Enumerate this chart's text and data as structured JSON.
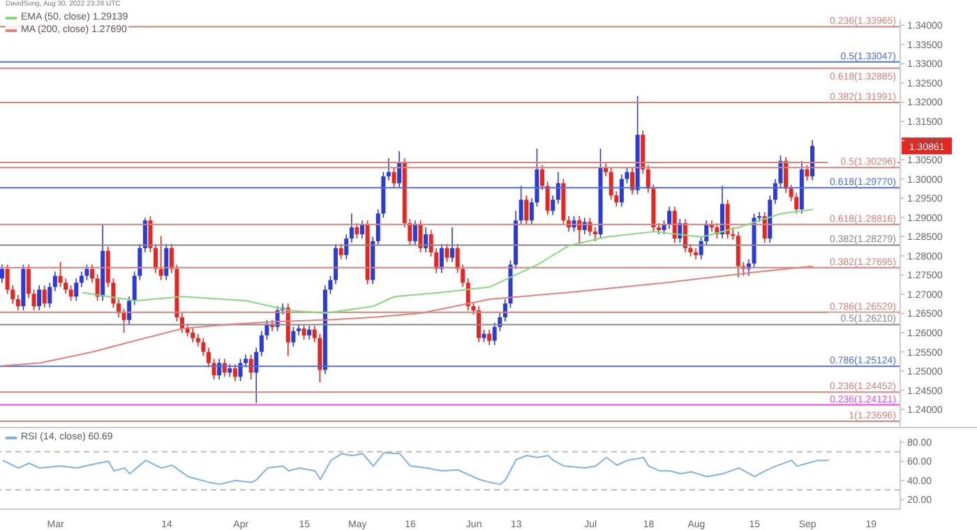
{
  "chart_data": [
    {
      "type": "candlestick",
      "annotations": [
        "DavidSong, Aug 30, 2022 23:28 UTC",
        {
          "text": "1.30861",
          "y": 1.30861
        }
      ],
      "categories": [
        null,
        null,
        null,
        null,
        null,
        null,
        null,
        null,
        null,
        null,
        null,
        null,
        null,
        null,
        null,
        null,
        null,
        null,
        null,
        null,
        null,
        null,
        null,
        null,
        null,
        null,
        null,
        null,
        null,
        null,
        null,
        null,
        null,
        null,
        null,
        null,
        null,
        null,
        null,
        null,
        null,
        null,
        null,
        null,
        null,
        null,
        null,
        null,
        null,
        null,
        null,
        null,
        null,
        null,
        null,
        null,
        null,
        null,
        null,
        null,
        null,
        null,
        null,
        null,
        null,
        null,
        null,
        null,
        null,
        null,
        null,
        null,
        null,
        null,
        null,
        null,
        null,
        null,
        null,
        null,
        null,
        null,
        null,
        null,
        null,
        null,
        null,
        null,
        null,
        null,
        null,
        null,
        null,
        null,
        null,
        null,
        null,
        null,
        null,
        null,
        null,
        null,
        null,
        null,
        null,
        null,
        null,
        null,
        null,
        null,
        null,
        null,
        null,
        null,
        null,
        null,
        null,
        null,
        null,
        null,
        null,
        null,
        null,
        null,
        null,
        null,
        null,
        null,
        null,
        null,
        null,
        null,
        null,
        null,
        null,
        null,
        null,
        null,
        null,
        null,
        null,
        null,
        null,
        null,
        null,
        null,
        null,
        null,
        null,
        null,
        null,
        null,
        null,
        null,
        null,
        null,
        null,
        null,
        null,
        null,
        null,
        null,
        null,
        null,
        null,
        null,
        null,
        null,
        null,
        null
      ],
      "ohlc": [
        [
          1.2741,
          1.2777,
          1.273,
          1.2766
        ],
        [
          1.2766,
          1.2777,
          1.2701,
          1.2712
        ],
        [
          1.2712,
          1.2723,
          1.2676,
          1.2687
        ],
        [
          1.2687,
          1.2698,
          1.2658,
          1.2669
        ],
        [
          1.2669,
          1.2777,
          1.2658,
          1.2766
        ],
        [
          1.2766,
          1.2777,
          1.269,
          1.2701
        ],
        [
          1.2701,
          1.2712,
          1.2658,
          1.2669
        ],
        [
          1.2669,
          1.2723,
          1.2658,
          1.2712
        ],
        [
          1.2712,
          1.2723,
          1.2665,
          1.2676
        ],
        [
          1.2676,
          1.273,
          1.2665,
          1.2719
        ],
        [
          1.2719,
          1.2759,
          1.2708,
          1.2748
        ],
        [
          1.2748,
          1.2784,
          1.2719,
          1.273
        ],
        [
          1.273,
          1.2741,
          1.2701,
          1.2712
        ],
        [
          1.2712,
          1.2723,
          1.2683,
          1.2694
        ],
        [
          1.2694,
          1.2741,
          1.2683,
          1.273
        ],
        [
          1.273,
          1.2759,
          1.2719,
          1.2748
        ],
        [
          1.2748,
          1.2777,
          1.2737,
          1.2766
        ],
        [
          1.2766,
          1.2777,
          1.273,
          1.2741
        ],
        [
          1.2741,
          1.2752,
          1.2683,
          1.2694
        ],
        [
          1.2694,
          1.2881,
          1.2683,
          1.2813
        ],
        [
          1.2813,
          1.2824,
          1.2719,
          1.273
        ],
        [
          1.273,
          1.2741,
          1.2665,
          1.2676
        ],
        [
          1.2676,
          1.2687,
          1.264,
          1.2651
        ],
        [
          1.2651,
          1.2662,
          1.26,
          1.2633
        ],
        [
          1.2633,
          1.2694,
          1.2622,
          1.2683
        ],
        [
          1.2683,
          1.2759,
          1.2672,
          1.2748
        ],
        [
          1.2748,
          1.2831,
          1.2737,
          1.282
        ],
        [
          1.282,
          1.2899,
          1.2809,
          1.2892
        ],
        [
          1.2892,
          1.2903,
          1.2809,
          1.282
        ],
        [
          1.282,
          1.2831,
          1.2755,
          1.2766
        ],
        [
          1.2766,
          1.2852,
          1.2737,
          1.2748
        ],
        [
          1.2748,
          1.2831,
          1.2737,
          1.282
        ],
        [
          1.282,
          1.2831,
          1.2755,
          1.2766
        ],
        [
          1.2766,
          1.2777,
          1.2629,
          1.264
        ],
        [
          1.264,
          1.2651,
          1.26,
          1.2611
        ],
        [
          1.2611,
          1.2622,
          1.259,
          1.26
        ],
        [
          1.26,
          1.2611,
          1.2575,
          1.2586
        ],
        [
          1.2586,
          1.2597,
          1.2564,
          1.2575
        ],
        [
          1.2575,
          1.2586,
          1.2539,
          1.255
        ],
        [
          1.255,
          1.2561,
          1.251,
          1.2521
        ],
        [
          1.2521,
          1.2532,
          1.2478,
          1.2489
        ],
        [
          1.2489,
          1.2532,
          1.2478,
          1.2521
        ],
        [
          1.2521,
          1.2532,
          1.2485,
          1.2496
        ],
        [
          1.2496,
          1.2518,
          1.2485,
          1.2507
        ],
        [
          1.2507,
          1.2518,
          1.2474,
          1.2485
        ],
        [
          1.2485,
          1.2532,
          1.2474,
          1.2521
        ],
        [
          1.2521,
          1.2543,
          1.251,
          1.2532
        ],
        [
          1.2532,
          1.2543,
          1.2478,
          1.2496
        ],
        [
          1.2496,
          1.2561,
          1.2417,
          1.255
        ],
        [
          1.255,
          1.2604,
          1.2539,
          1.2593
        ],
        [
          1.2593,
          1.2633,
          1.2582,
          1.2622
        ],
        [
          1.2622,
          1.2633,
          1.2604,
          1.2615
        ],
        [
          1.2615,
          1.2669,
          1.2604,
          1.2658
        ],
        [
          1.2658,
          1.2676,
          1.2647,
          1.2665
        ],
        [
          1.2665,
          1.2676,
          1.2539,
          1.2575
        ],
        [
          1.2575,
          1.2615,
          1.2564,
          1.2604
        ],
        [
          1.2604,
          1.2622,
          1.2593,
          1.2611
        ],
        [
          1.2611,
          1.2622,
          1.2582,
          1.2593
        ],
        [
          1.2593,
          1.2618,
          1.2582,
          1.2608
        ],
        [
          1.2608,
          1.2618,
          1.2575,
          1.2586
        ],
        [
          1.2586,
          1.2597,
          1.2471,
          1.2503
        ],
        [
          1.2503,
          1.2723,
          1.2492,
          1.2712
        ],
        [
          1.2712,
          1.2748,
          1.2701,
          1.2737
        ],
        [
          1.2737,
          1.2831,
          1.2726,
          1.282
        ],
        [
          1.282,
          1.2831,
          1.2791,
          1.2802
        ],
        [
          1.2802,
          1.2856,
          1.2791,
          1.2845
        ],
        [
          1.2845,
          1.291,
          1.2834,
          1.2874
        ],
        [
          1.2874,
          1.2885,
          1.2845,
          1.2856
        ],
        [
          1.2856,
          1.2892,
          1.2845,
          1.2881
        ],
        [
          1.2881,
          1.2892,
          1.2726,
          1.2737
        ],
        [
          1.2737,
          1.2849,
          1.2726,
          1.2838
        ],
        [
          1.2838,
          1.2921,
          1.2827,
          1.291
        ],
        [
          1.291,
          1.3018,
          1.2899,
          1.3007
        ],
        [
          1.3007,
          1.3054,
          1.2996,
          1.3018
        ],
        [
          1.3018,
          1.3029,
          1.2978,
          1.2989
        ],
        [
          1.2989,
          1.3072,
          1.2978,
          1.3043
        ],
        [
          1.3043,
          1.3054,
          1.2874,
          1.2885
        ],
        [
          1.2885,
          1.2896,
          1.2827,
          1.2838
        ],
        [
          1.2838,
          1.2892,
          1.2827,
          1.2881
        ],
        [
          1.2881,
          1.2892,
          1.2809,
          1.282
        ],
        [
          1.282,
          1.2874,
          1.2809,
          1.2856
        ],
        [
          1.2856,
          1.2867,
          1.2798,
          1.2809
        ],
        [
          1.2809,
          1.282,
          1.2755,
          1.2766
        ],
        [
          1.2766,
          1.2831,
          1.2755,
          1.282
        ],
        [
          1.282,
          1.2831,
          1.2784,
          1.2795
        ],
        [
          1.2795,
          1.2874,
          1.2784,
          1.282
        ],
        [
          1.282,
          1.2831,
          1.2755,
          1.2766
        ],
        [
          1.2766,
          1.2777,
          1.2719,
          1.273
        ],
        [
          1.273,
          1.2741,
          1.2658,
          1.2669
        ],
        [
          1.2669,
          1.268,
          1.2647,
          1.2658
        ],
        [
          1.2658,
          1.2669,
          1.2575,
          1.2586
        ],
        [
          1.2586,
          1.2608,
          1.2575,
          1.2597
        ],
        [
          1.2597,
          1.2608,
          1.2568,
          1.2579
        ],
        [
          1.2579,
          1.2626,
          1.2568,
          1.2615
        ],
        [
          1.2615,
          1.2651,
          1.2604,
          1.264
        ],
        [
          1.264,
          1.2687,
          1.2629,
          1.2676
        ],
        [
          1.2676,
          1.2788,
          1.2665,
          1.2777
        ],
        [
          1.2777,
          1.2917,
          1.2766,
          1.2892
        ],
        [
          1.2892,
          1.2982,
          1.2881,
          1.2946
        ],
        [
          1.2946,
          1.2957,
          1.2881,
          1.2892
        ],
        [
          1.2892,
          1.295,
          1.2881,
          1.2939
        ],
        [
          1.2939,
          1.3079,
          1.2928,
          1.3025
        ],
        [
          1.3025,
          1.3036,
          1.2971,
          1.2982
        ],
        [
          1.2982,
          1.2993,
          1.2906,
          1.2917
        ],
        [
          1.2917,
          1.2957,
          1.2906,
          1.2946
        ],
        [
          1.2946,
          1.3018,
          1.2935,
          1.2989
        ],
        [
          1.2989,
          1.3,
          1.2881,
          1.2892
        ],
        [
          1.2892,
          1.2903,
          1.2863,
          1.2874
        ],
        [
          1.2874,
          1.2903,
          1.2863,
          1.2892
        ],
        [
          1.2892,
          1.2903,
          1.2831,
          1.2867
        ],
        [
          1.2867,
          1.2899,
          1.2856,
          1.2888
        ],
        [
          1.2888,
          1.2899,
          1.2852,
          1.2863
        ],
        [
          1.2863,
          1.2874,
          1.2838,
          1.2856
        ],
        [
          1.2856,
          1.3079,
          1.2845,
          1.3029
        ],
        [
          1.3029,
          1.304,
          1.3007,
          1.3018
        ],
        [
          1.3018,
          1.3029,
          1.2946,
          1.2957
        ],
        [
          1.2957,
          1.2968,
          1.2928,
          1.2939
        ],
        [
          1.2939,
          1.3011,
          1.2928,
          1.3
        ],
        [
          1.3,
          1.3029,
          1.2989,
          1.3018
        ],
        [
          1.3018,
          1.3029,
          1.296,
          1.2971
        ],
        [
          1.2971,
          1.3216,
          1.296,
          1.3115
        ],
        [
          1.3115,
          1.3126,
          1.3014,
          1.3025
        ],
        [
          1.3025,
          1.3036,
          1.2964,
          1.2975
        ],
        [
          1.2975,
          1.2985,
          1.2863,
          1.2874
        ],
        [
          1.2874,
          1.2885,
          1.2856,
          1.2867
        ],
        [
          1.2867,
          1.2892,
          1.2856,
          1.2881
        ],
        [
          1.2881,
          1.2928,
          1.287,
          1.2917
        ],
        [
          1.2917,
          1.2928,
          1.2834,
          1.2845
        ],
        [
          1.2845,
          1.2896,
          1.2834,
          1.2885
        ],
        [
          1.2885,
          1.2896,
          1.2809,
          1.282
        ],
        [
          1.282,
          1.2831,
          1.2798,
          1.2809
        ],
        [
          1.2809,
          1.282,
          1.2791,
          1.2802
        ],
        [
          1.2802,
          1.2849,
          1.2791,
          1.2838
        ],
        [
          1.2838,
          1.2892,
          1.2827,
          1.2881
        ],
        [
          1.2881,
          1.2892,
          1.2863,
          1.2874
        ],
        [
          1.2874,
          1.2885,
          1.2845,
          1.2856
        ],
        [
          1.2856,
          1.2982,
          1.2845,
          1.2935
        ],
        [
          1.2935,
          1.2946,
          1.2845,
          1.2856
        ],
        [
          1.2856,
          1.2874,
          1.2842,
          1.2852
        ],
        [
          1.2852,
          1.2863,
          1.2744,
          1.2773
        ],
        [
          1.2773,
          1.2784,
          1.2748,
          1.2766
        ],
        [
          1.2766,
          1.2791,
          1.2748,
          1.278
        ],
        [
          1.278,
          1.291,
          1.277,
          1.2899
        ],
        [
          1.2899,
          1.2914,
          1.2888,
          1.2903
        ],
        [
          1.2903,
          1.2914,
          1.2834,
          1.2845
        ],
        [
          1.2845,
          1.2957,
          1.2834,
          1.2946
        ],
        [
          1.2946,
          1.3,
          1.2935,
          1.2989
        ],
        [
          1.2989,
          1.3061,
          1.2978,
          1.3047
        ],
        [
          1.3047,
          1.3057,
          1.2964,
          1.2975
        ],
        [
          1.2975,
          1.2985,
          1.2942,
          1.2953
        ],
        [
          1.2953,
          1.2964,
          1.291,
          1.2921
        ],
        [
          1.2921,
          1.3047,
          1.291,
          1.3025
        ],
        [
          1.3025,
          1.3036,
          1.2996,
          1.3007
        ],
        [
          1.3007,
          1.3101,
          1.2996,
          1.30861
        ],
        null,
        null,
        null,
        null,
        null,
        null,
        null,
        null,
        null,
        null,
        null,
        null,
        null,
        null,
        null,
        null
      ],
      "colors": [
        "#2a3bd8",
        "#e8261f",
        "#e8261f",
        "#e8261f",
        "#2a3bd8",
        "#e8261f",
        "#e8261f",
        "#2a3bd8",
        "#e8261f",
        "#2a3bd8",
        "#2a3bd8",
        "#e8261f",
        "#e8261f",
        "#e8261f",
        "#2a3bd8",
        "#2a3bd8",
        "#2a3bd8",
        "#e8261f",
        "#e8261f",
        "#2a3bd8",
        "#e8261f",
        "#e8261f",
        "#e8261f",
        "#e8261f",
        "#2a3bd8",
        "#2a3bd8",
        "#2a3bd8",
        "#2a3bd8",
        "#e8261f",
        "#e8261f",
        "#e8261f",
        "#2a3bd8",
        "#e8261f",
        "#e8261f",
        "#e8261f",
        "#e8261f",
        "#e8261f",
        "#e8261f",
        "#e8261f",
        "#e8261f",
        "#e8261f",
        "#2a3bd8",
        "#e8261f",
        "#2a3bd8",
        "#e8261f",
        "#2a3bd8",
        "#2a3bd8",
        "#e8261f",
        "#2a3bd8",
        "#2a3bd8",
        "#2a3bd8",
        "#e8261f",
        "#2a3bd8",
        "#2a3bd8",
        "#e8261f",
        "#2a3bd8",
        "#2a3bd8",
        "#e8261f",
        "#2a3bd8",
        "#e8261f",
        "#e8261f",
        "#2a3bd8",
        "#2a3bd8",
        "#2a3bd8",
        "#e8261f",
        "#2a3bd8",
        "#2a3bd8",
        "#e8261f",
        "#2a3bd8",
        "#e8261f",
        "#2a3bd8",
        "#2a3bd8",
        "#2a3bd8",
        "#2a3bd8",
        "#e8261f",
        "#2a3bd8",
        "#e8261f",
        "#e8261f",
        "#2a3bd8",
        "#e8261f",
        "#2a3bd8",
        "#e8261f",
        "#e8261f",
        "#2a3bd8",
        "#e8261f",
        "#2a3bd8",
        "#e8261f",
        "#e8261f",
        "#e8261f",
        "#e8261f",
        "#e8261f",
        "#2a3bd8",
        "#e8261f",
        "#2a3bd8",
        "#2a3bd8",
        "#2a3bd8",
        "#2a3bd8",
        "#2a3bd8",
        "#2a3bd8",
        "#e8261f",
        "#2a3bd8",
        "#2a3bd8",
        "#e8261f",
        "#e8261f",
        "#2a3bd8",
        "#2a3bd8",
        "#e8261f",
        "#e8261f",
        "#2a3bd8",
        "#e8261f",
        "#2a3bd8",
        "#e8261f",
        "#e8261f",
        "#2a3bd8",
        "#e8261f",
        "#e8261f",
        "#e8261f",
        "#2a3bd8",
        "#2a3bd8",
        "#e8261f",
        "#2a3bd8",
        "#e8261f",
        "#e8261f",
        "#e8261f",
        "#e8261f",
        "#2a3bd8",
        "#2a3bd8",
        "#e8261f",
        "#2a3bd8",
        "#e8261f",
        "#e8261f",
        "#e8261f",
        "#2a3bd8",
        "#2a3bd8",
        "#e8261f",
        "#e8261f",
        "#2a3bd8",
        "#e8261f",
        "#e8261f",
        "#e8261f",
        "#e8261f",
        "#2a3bd8",
        "#2a3bd8",
        "#2a3bd8",
        "#e8261f",
        "#2a3bd8",
        "#2a3bd8",
        "#2a3bd8",
        "#e8261f",
        "#e8261f",
        "#e8261f",
        "#2a3bd8",
        "#e8261f",
        "#2a3bd8",
        null,
        null,
        null,
        null,
        null,
        null,
        null,
        null,
        null,
        null,
        null,
        null,
        null,
        null,
        null,
        null
      ],
      "series": [
        {
          "type": "line",
          "name": "EMA (50, close) 1.29139",
          "color": "#86d97f",
          "values": [
            null,
            null,
            null,
            null,
            null,
            null,
            null,
            null,
            null,
            null,
            null,
            null,
            null,
            null,
            null,
            1.2705,
            null,
            null,
            null,
            null,
            null,
            null,
            null,
            null,
            null,
            1.2683,
            null,
            null,
            null,
            null,
            null,
            null,
            null,
            null,
            1.2694,
            null,
            null,
            null,
            null,
            null,
            null,
            null,
            null,
            null,
            null,
            null,
            1.2683,
            null,
            null,
            null,
            null,
            null,
            null,
            null,
            1.2658,
            null,
            null,
            null,
            null,
            null,
            null,
            1.2651,
            null,
            null,
            null,
            null,
            null,
            null,
            null,
            null,
            1.2669,
            null,
            null,
            null,
            1.2694,
            null,
            null,
            null,
            null,
            null,
            null,
            null,
            null,
            1.2705,
            null,
            null,
            null,
            null,
            null,
            null,
            null,
            null,
            1.2719,
            null,
            null,
            null,
            null,
            null,
            null,
            null,
            null,
            1.2777,
            null,
            null,
            null,
            null,
            null,
            1.2827,
            null,
            null,
            null,
            null,
            null,
            null,
            1.2849,
            null,
            null,
            null,
            null,
            null,
            null,
            null,
            null,
            1.2863,
            null,
            null,
            null,
            null,
            null,
            null,
            null,
            null,
            1.2849,
            null,
            null,
            null,
            null,
            null,
            null,
            1.2874,
            null,
            null,
            null,
            null,
            null,
            null,
            null,
            1.291,
            null,
            null,
            null,
            null,
            null,
            1.2921,
            null,
            null,
            null,
            null,
            null,
            null,
            null,
            null,
            null,
            null,
            null,
            null,
            null,
            null,
            null,
            null
          ]
        },
        {
          "type": "line",
          "name": "MA (200, close) 1.27690",
          "color": "#e5807a",
          "values": [
            1.2514,
            null,
            null,
            null,
            null,
            null,
            null,
            1.2521,
            null,
            null,
            null,
            null,
            null,
            null,
            null,
            null,
            null,
            1.255,
            null,
            null,
            null,
            null,
            null,
            null,
            null,
            1.2579,
            null,
            null,
            null,
            null,
            null,
            null,
            null,
            null,
            1.2611,
            null,
            null,
            null,
            null,
            null,
            null,
            null,
            null,
            1.2622,
            null,
            null,
            null,
            null,
            null,
            null,
            null,
            null,
            1.2629,
            null,
            null,
            null,
            null,
            null,
            null,
            null,
            null,
            1.2633,
            null,
            null,
            null,
            null,
            null,
            null,
            null,
            null,
            1.264,
            null,
            null,
            null,
            null,
            null,
            null,
            null,
            null,
            1.2651,
            null,
            null,
            null,
            null,
            null,
            null,
            null,
            null,
            null,
            null,
            null,
            null,
            1.2687,
            null,
            null,
            null,
            null,
            null,
            null,
            null,
            null,
            null,
            null,
            null,
            null,
            null,
            null,
            1.2705,
            null,
            null,
            null,
            null,
            null,
            null,
            null,
            null,
            null,
            null,
            null,
            null,
            null,
            null,
            null,
            null,
            null,
            1.273,
            null,
            null,
            null,
            null,
            null,
            null,
            null,
            null,
            null,
            null,
            null,
            null,
            null,
            null,
            null,
            null,
            null,
            1.2759,
            null,
            null,
            null,
            null,
            null,
            null,
            null,
            null,
            null,
            1.2773,
            null,
            null,
            null,
            null,
            null,
            null,
            null,
            null,
            null,
            null,
            null,
            null,
            null,
            null,
            null,
            null
          ]
        }
      ],
      "ylim": [
        1.2355,
        1.3415
      ],
      "yticks": [
        {
          "value": 1.24,
          "label": "1.24000"
        },
        {
          "value": 1.245,
          "label": "1.24500"
        },
        {
          "value": 1.25,
          "label": "1.25000"
        },
        {
          "value": 1.255,
          "label": "1.25500"
        },
        {
          "value": 1.26,
          "label": "1.26000"
        },
        {
          "value": 1.265,
          "label": "1.26500"
        },
        {
          "value": 1.27,
          "label": "1.27000"
        },
        {
          "value": 1.275,
          "label": "1.27500"
        },
        {
          "value": 1.28,
          "label": "1.28000"
        },
        {
          "value": 1.285,
          "label": "1.28500"
        },
        {
          "value": 1.29,
          "label": "1.29000"
        },
        {
          "value": 1.295,
          "label": "1.29500"
        },
        {
          "value": 1.3,
          "label": "1.30000"
        },
        {
          "value": 1.305,
          "label": "1.30500"
        },
        {
          "value": 1.31,
          "label": "1.31000"
        },
        {
          "value": 1.315,
          "label": "1.31500"
        },
        {
          "value": 1.32,
          "label": "1.32000"
        },
        {
          "value": 1.325,
          "label": "1.32500"
        },
        {
          "value": 1.33,
          "label": "1.33000"
        },
        {
          "value": 1.335,
          "label": "1.33500"
        },
        {
          "value": 1.34,
          "label": "1.34000"
        }
      ],
      "ref_lines": [
        {
          "axis": "y",
          "value": 1.33965,
          "label": "0.236(1.33965)",
          "color": "#d9827c"
        },
        {
          "axis": "y",
          "value": 1.33047,
          "label": "0.5(1.33047)",
          "color": "#4f6fd8"
        },
        {
          "axis": "y",
          "value": 1.32885,
          "label": "0.618(1.32885)",
          "color": "#d9827c"
        },
        {
          "axis": "y",
          "value": 1.31991,
          "label": "0.382(1.31991)",
          "color": "#d9827c"
        },
        {
          "axis": "y",
          "value": 1.3043,
          "label": null,
          "color": "#d9827c"
        },
        {
          "axis": "y",
          "value": 1.30296,
          "label": "0.5(1.30296)",
          "color": "#d9827c"
        },
        {
          "axis": "y",
          "value": 1.2977,
          "label": "0.618(1.29770)",
          "color": "#4f6fd8"
        },
        {
          "axis": "y",
          "value": 1.28816,
          "label": "0.618(1.28816)",
          "color": "#d9827c"
        },
        {
          "axis": "y",
          "value": 1.28279,
          "label": "0.382(1.28279)",
          "color": "#888888"
        },
        {
          "axis": "y",
          "value": 1.27695,
          "label": "0.382(1.27695)",
          "color": "#d9827c"
        },
        {
          "axis": "y",
          "value": 1.26529,
          "label": "0.786(1.26529)",
          "color": "#d9827c"
        },
        {
          "axis": "y",
          "value": 1.2621,
          "label": "0.5(1.26210)",
          "color": "#888888"
        },
        {
          "axis": "y",
          "value": 1.25124,
          "label": "0.786(1.25124)",
          "color": "#4f6fd8"
        },
        {
          "axis": "y",
          "value": 1.24452,
          "label": "0.236(1.24452)",
          "color": "#d9827c"
        },
        {
          "axis": "y",
          "value": 1.24121,
          "label": "0.236(1.24121)",
          "color": "#e04fe0"
        },
        {
          "axis": "y",
          "value": 1.23696,
          "label": "1(1.23696)",
          "color": "#d9827c"
        }
      ],
      "legend": "top left",
      "tick_labels": "y"
    },
    {
      "type": "line",
      "categories": [
        null,
        null,
        null,
        null,
        null,
        null,
        null,
        null,
        null,
        null,
        "Mar",
        null,
        null,
        null,
        null,
        null,
        null,
        null,
        null,
        null,
        null,
        null,
        null,
        null,
        null,
        null,
        null,
        null,
        null,
        null,
        null,
        "14",
        null,
        null,
        null,
        null,
        null,
        null,
        null,
        null,
        null,
        null,
        null,
        null,
        null,
        "Apr",
        null,
        null,
        null,
        null,
        null,
        null,
        null,
        null,
        null,
        null,
        null,
        "15",
        null,
        null,
        null,
        null,
        null,
        null,
        null,
        null,
        null,
        "May",
        null,
        null,
        null,
        null,
        null,
        null,
        null,
        null,
        null,
        "16",
        null,
        null,
        null,
        null,
        null,
        null,
        null,
        null,
        null,
        null,
        null,
        "Jun",
        null,
        null,
        null,
        null,
        null,
        null,
        null,
        "13",
        null,
        null,
        null,
        null,
        null,
        null,
        null,
        null,
        null,
        null,
        null,
        null,
        null,
        "Jul",
        null,
        null,
        null,
        null,
        null,
        null,
        null,
        null,
        null,
        null,
        "18",
        null,
        null,
        null,
        null,
        null,
        null,
        null,
        null,
        "Aug",
        null,
        null,
        null,
        null,
        null,
        null,
        null,
        null,
        null,
        null,
        "15",
        null,
        null,
        null,
        null,
        null,
        null,
        null,
        null,
        null,
        "Sep",
        null,
        null,
        null,
        null,
        null,
        null,
        null,
        null,
        null,
        null,
        null,
        "19",
        null,
        null,
        null,
        null,
        null
      ],
      "series": [
        {
          "name": "RSI (14, close) 60.69",
          "color": "#7fb2e5",
          "values": [
            61,
            null,
            null,
            53,
            null,
            58,
            null,
            53,
            null,
            null,
            null,
            55,
            null,
            null,
            53,
            null,
            null,
            null,
            58,
            null,
            60,
            50,
            null,
            53,
            47,
            null,
            null,
            61,
            null,
            null,
            53,
            null,
            56,
            null,
            null,
            44,
            null,
            null,
            null,
            38,
            null,
            36,
            null,
            null,
            40,
            null,
            null,
            38,
            41,
            null,
            53,
            null,
            null,
            55,
            50,
            null,
            53,
            null,
            null,
            50,
            41,
            null,
            61,
            null,
            68,
            null,
            66,
            null,
            68,
            null,
            55,
            null,
            69,
            null,
            null,
            68,
            null,
            55,
            null,
            null,
            53,
            null,
            null,
            50,
            null,
            null,
            51,
            null,
            null,
            null,
            41,
            null,
            38,
            null,
            36,
            41,
            null,
            62,
            null,
            66,
            null,
            64,
            null,
            66,
            61,
            null,
            55,
            null,
            null,
            null,
            53,
            null,
            55,
            null,
            64,
            null,
            56,
            null,
            61,
            null,
            null,
            64,
            55,
            null,
            50,
            null,
            50,
            null,
            47,
            null,
            49,
            null,
            null,
            44,
            null,
            null,
            47,
            null,
            null,
            53,
            50,
            null,
            44,
            null,
            50,
            null,
            55,
            null,
            null,
            61,
            55,
            null,
            58,
            null,
            61,
            null,
            61,
            null,
            null,
            null,
            null,
            null,
            null,
            null,
            null,
            null,
            null,
            null,
            null,
            null
          ]
        }
      ],
      "ylim": [
        10,
        83
      ],
      "yticks": [
        {
          "value": 20,
          "label": "20.00"
        },
        {
          "value": 40,
          "label": "40.00"
        },
        {
          "value": 60,
          "label": "60.00"
        },
        {
          "value": 80,
          "label": "80.00"
        }
      ],
      "ref_lines": [
        {
          "axis": "y",
          "value": 70,
          "color": "#bbbbbb",
          "line_style": "dashed"
        },
        {
          "axis": "y",
          "value": 30,
          "color": "#bbbbbb",
          "line_style": "dashed"
        }
      ],
      "legend": "top left"
    }
  ]
}
